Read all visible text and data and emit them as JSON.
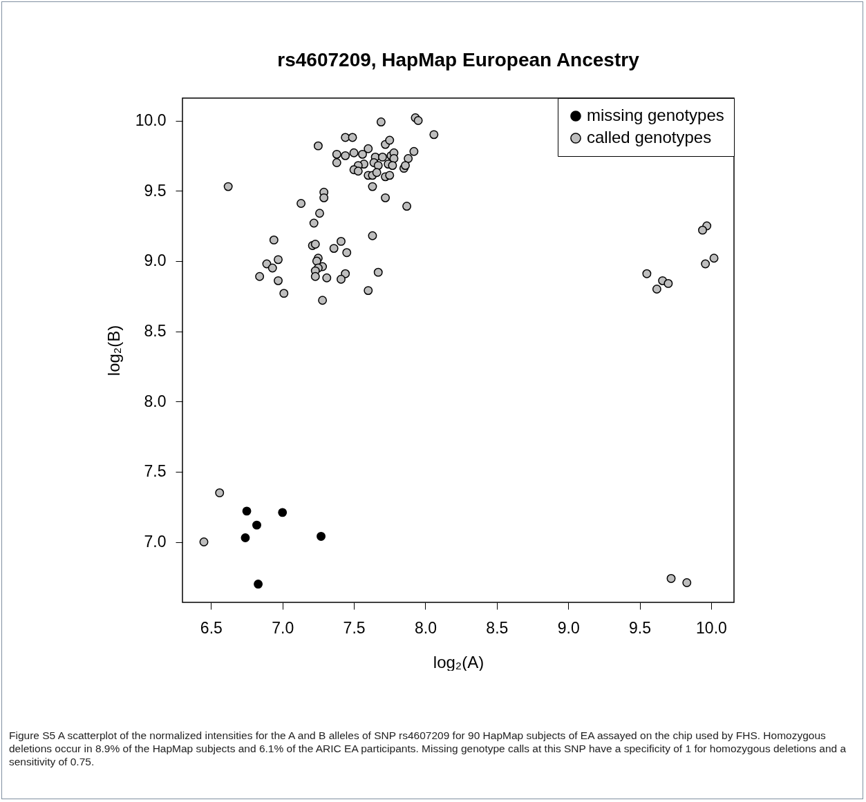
{
  "chart_data": {
    "type": "scatter",
    "title": "rs4607209, HapMap European Ancestry",
    "xlabel": "log₂(A)",
    "ylabel": "log₂(B)",
    "xlim": [
      6.3,
      10.16
    ],
    "ylim": [
      6.57,
      10.16
    ],
    "xticks": [
      6.5,
      {
        "value": 7,
        "label": "7.0"
      },
      7.5,
      {
        "value": 8,
        "label": "8.0"
      },
      8.5,
      {
        "value": 9,
        "label": "9.0"
      },
      9.5,
      {
        "value": 10,
        "label": "10.0"
      }
    ],
    "yticks": [
      {
        "value": 7,
        "label": "7.0"
      },
      7.5,
      {
        "value": 8,
        "label": "8.0"
      },
      8.5,
      {
        "value": 9,
        "label": "9.0"
      },
      9.5,
      {
        "value": 10,
        "label": "10.0"
      }
    ],
    "grid": false,
    "legend": "top right",
    "marker": "circle",
    "series": [
      {
        "name": "missing genotypes",
        "color": "#000000",
        "x": [
          6.75,
          7.0,
          6.82,
          6.74,
          7.27,
          6.83
        ],
        "values": [
          7.22,
          7.21,
          7.12,
          7.03,
          7.04,
          6.7
        ]
      },
      {
        "name": "called genotypes",
        "color": "#bebebe",
        "x": [
          7.69,
          7.93,
          7.95,
          8.06,
          7.44,
          7.49,
          7.25,
          7.72,
          7.75,
          7.38,
          7.38,
          7.44,
          7.5,
          7.56,
          7.6,
          7.65,
          7.7,
          7.76,
          7.78,
          7.78,
          7.92,
          7.88,
          7.64,
          7.67,
          7.74,
          7.77,
          7.57,
          7.53,
          7.5,
          7.53,
          7.6,
          7.63,
          7.66,
          7.72,
          7.75,
          7.85,
          7.86,
          7.63,
          7.72,
          7.87,
          7.29,
          7.29,
          7.13,
          7.26,
          7.22,
          7.63,
          6.94,
          7.21,
          7.23,
          7.41,
          7.36,
          7.45,
          6.97,
          6.89,
          6.93,
          7.25,
          7.24,
          7.28,
          7.25,
          7.23,
          7.23,
          7.31,
          7.44,
          7.41,
          7.67,
          6.84,
          6.97,
          7.01,
          7.6,
          7.28,
          9.97,
          9.94,
          10.02,
          9.96,
          9.55,
          9.66,
          9.7,
          9.62,
          9.72,
          9.83,
          6.62,
          6.56,
          6.45
        ],
        "values": [
          9.99,
          10.02,
          10.0,
          9.9,
          9.88,
          9.88,
          9.82,
          9.83,
          9.86,
          9.76,
          9.7,
          9.75,
          9.77,
          9.76,
          9.8,
          9.74,
          9.74,
          9.75,
          9.77,
          9.73,
          9.78,
          9.73,
          9.7,
          9.68,
          9.69,
          9.68,
          9.69,
          9.68,
          9.65,
          9.64,
          9.61,
          9.61,
          9.63,
          9.6,
          9.61,
          9.66,
          9.68,
          9.53,
          9.45,
          9.39,
          9.49,
          9.45,
          9.41,
          9.34,
          9.27,
          9.18,
          9.15,
          9.11,
          9.12,
          9.14,
          9.09,
          9.06,
          9.01,
          8.98,
          8.95,
          9.02,
          9.0,
          8.96,
          8.95,
          8.93,
          8.89,
          8.88,
          8.91,
          8.87,
          8.92,
          8.89,
          8.86,
          8.77,
          8.79,
          8.72,
          9.25,
          9.22,
          9.02,
          8.98,
          8.91,
          8.86,
          8.84,
          8.8,
          6.74,
          6.71,
          9.53,
          7.35,
          7.0
        ]
      }
    ],
    "annotations": [
      "Figure S5  A scatterplot of the normalized intensities for the A and B alleles of SNP rs4607209 for 90 HapMap subjects of EA assayed on the chip used by FHS. Homozygous deletions occur in 8.9% of the HapMap subjects and 6.1% of the ARIC EA participants. Missing genotype calls at this SNP have a specificity of 1 for homozygous deletions and a sensitivity of 0.75."
    ]
  }
}
